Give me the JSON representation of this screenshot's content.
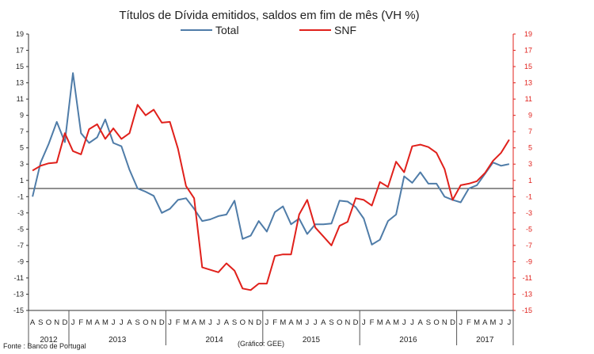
{
  "chart_data": {
    "type": "line",
    "title": "Títulos de Dívida emitidos, saldos em fim de mês  (VH %)",
    "source": "Fonte : Banco de Portugal",
    "note": "(Gráfico: GEE)",
    "ylim": [
      -15,
      19
    ],
    "yticks": [
      "-15",
      "-13",
      "-11",
      "-9",
      "-7",
      "-5",
      "-3",
      "-1",
      "1",
      "3",
      "5",
      "7",
      "9",
      "11",
      "13",
      "15",
      "17",
      "19"
    ],
    "month_labels": [
      "A",
      "S",
      "O",
      "N",
      "D",
      "J",
      "F",
      "M",
      "A",
      "M",
      "J",
      "J",
      "A",
      "S",
      "O",
      "N",
      "D",
      "J",
      "F",
      "M",
      "A",
      "M",
      "J",
      "J",
      "A",
      "S",
      "O",
      "N",
      "D",
      "J",
      "F",
      "M",
      "A",
      "M",
      "J",
      "J",
      "A",
      "S",
      "O",
      "N",
      "D",
      "J",
      "F",
      "M",
      "A",
      "M",
      "J",
      "J",
      "A",
      "S",
      "O",
      "N",
      "D",
      "J",
      "F",
      "M",
      "A",
      "M",
      "J",
      "J"
    ],
    "years": [
      {
        "label": "2012",
        "start": 0,
        "count": 5
      },
      {
        "label": "2013",
        "start": 5,
        "count": 12
      },
      {
        "label": "2014",
        "start": 17,
        "count": 12
      },
      {
        "label": "2015",
        "start": 29,
        "count": 12
      },
      {
        "label": "2016",
        "start": 41,
        "count": 12
      },
      {
        "label": "2017",
        "start": 53,
        "count": 7
      }
    ],
    "series": [
      {
        "name": "Total",
        "color": "#4f7ca8",
        "axis": "left",
        "values": [
          -1.0,
          3.2,
          5.5,
          8.2,
          5.7,
          14.2,
          6.8,
          5.6,
          6.3,
          8.5,
          5.6,
          5.2,
          2.3,
          0.0,
          -0.4,
          -0.9,
          -3.0,
          -2.5,
          -1.4,
          -1.2,
          -2.5,
          -4.0,
          -3.8,
          -3.4,
          -3.2,
          -1.5,
          -6.2,
          -5.8,
          -4.0,
          -5.3,
          -2.9,
          -2.2,
          -4.4,
          -3.7,
          -5.6,
          -4.4,
          -4.4,
          -4.3,
          -1.5,
          -1.6,
          -2.3,
          -3.7,
          -6.9,
          -6.3,
          -4.0,
          -3.2,
          1.5,
          0.7,
          2.0,
          0.6,
          0.6,
          -1.0,
          -1.4,
          -1.7,
          0.0,
          0.4,
          1.8,
          3.2,
          2.8,
          3.0
        ]
      },
      {
        "name": "SNF",
        "color": "#e0201b",
        "axis": "right",
        "values": [
          2.2,
          2.8,
          3.1,
          3.2,
          6.8,
          4.6,
          4.2,
          7.3,
          7.9,
          6.1,
          7.4,
          6.1,
          6.8,
          10.3,
          9.0,
          9.7,
          8.1,
          8.2,
          4.9,
          0.3,
          -1.2,
          -9.7,
          -10.0,
          -10.3,
          -9.2,
          -10.1,
          -12.3,
          -12.5,
          -11.7,
          -11.7,
          -8.3,
          -8.1,
          -8.1,
          -3.2,
          -1.4,
          -4.8,
          -5.9,
          -7.0,
          -4.6,
          -4.1,
          -1.2,
          -1.4,
          -2.1,
          0.8,
          0.2,
          3.3,
          2.0,
          5.2,
          5.4,
          5.1,
          4.4,
          2.4,
          -1.4,
          0.4,
          0.6,
          0.9,
          1.9,
          3.4,
          4.4,
          6.0
        ]
      }
    ]
  }
}
